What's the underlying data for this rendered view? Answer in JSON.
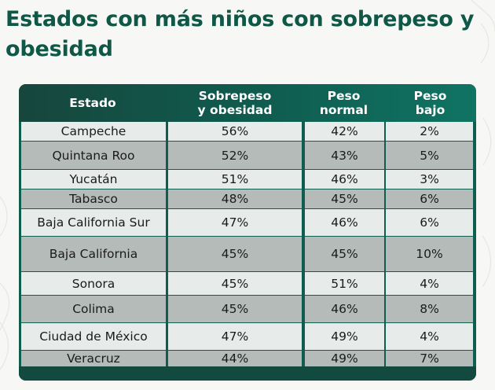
{
  "title": "Estados con más niños con sobrepeso y obesidad",
  "table": {
    "headers": [
      "Estado",
      "Sobrepeso\ny obesidad",
      "Peso\nnormal",
      "Peso\nbajo"
    ],
    "rows": [
      [
        "Campeche",
        "56%",
        "42%",
        "2%"
      ],
      [
        "Quintana Roo",
        "52%",
        "43%",
        "5%"
      ],
      [
        "Yucatán",
        "51%",
        "46%",
        "3%"
      ],
      [
        "Tabasco",
        "48%",
        "45%",
        "6%"
      ],
      [
        "Baja California Sur",
        "47%",
        "46%",
        "6%"
      ],
      [
        "Baja California",
        "45%",
        "45%",
        "10%"
      ],
      [
        "Sonora",
        "45%",
        "51%",
        "4%"
      ],
      [
        "Colima",
        "45%",
        "46%",
        "8%"
      ],
      [
        "Ciudad de México",
        "47%",
        "49%",
        "4%"
      ],
      [
        "Veracruz",
        "44%",
        "49%",
        "7%"
      ]
    ]
  },
  "colors": {
    "title": "#0f5746",
    "header_bg": "#0f5d50",
    "row_light": "#e7ebea",
    "row_dark": "#b4bbb8"
  }
}
